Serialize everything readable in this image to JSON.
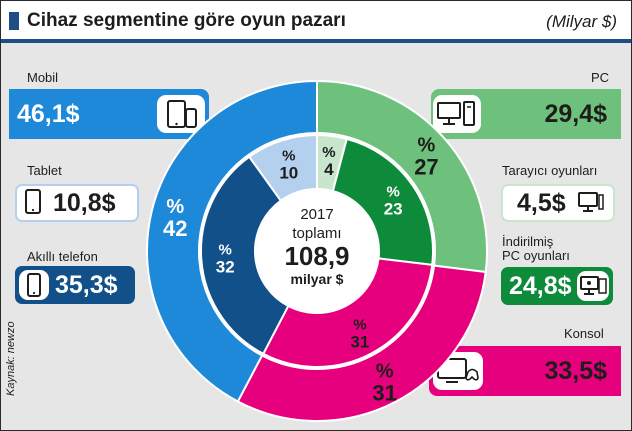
{
  "header": {
    "title": "Cihaz segmentine göre oyun pazarı",
    "unit": "(Milyar $)"
  },
  "center": {
    "line1": "2017",
    "line2": "toplamı",
    "total": "108,9",
    "line4": "milyar $"
  },
  "source": "Kaynak: newzo",
  "colors": {
    "mobile": "#1e88d9",
    "tablet": "#b3d1ee",
    "smartphone": "#12508a",
    "pc": "#6ec17c",
    "browser": "#c8e6cb",
    "pc_downloaded": "#0d8a3a",
    "console": "#e6007e",
    "header_rule": "#1d4f86"
  },
  "chart_data": [
    {
      "type": "pie",
      "ring": "outer",
      "categories": [
        "PC",
        "Konsol",
        "Mobil"
      ],
      "values": [
        29.4,
        33.5,
        46.1
      ],
      "labels": [
        {
          "percent_sign": "%",
          "value": "27"
        },
        {
          "percent_sign": "%",
          "value": "31"
        },
        {
          "percent_sign": "%",
          "value": "42"
        }
      ]
    },
    {
      "type": "pie",
      "ring": "inner",
      "categories": [
        "Tarayıcı oyunları",
        "İndirilmiş PC oyunları",
        "Konsol",
        "Akıllı telefon",
        "Tablet"
      ],
      "values": [
        4.5,
        24.8,
        33.5,
        35.3,
        10.8
      ],
      "labels": [
        {
          "percent_sign": "%",
          "value": "4"
        },
        {
          "percent_sign": "%",
          "value": "23"
        },
        {
          "percent_sign": "%",
          "value": "31"
        },
        {
          "percent_sign": "%",
          "value": "32"
        },
        {
          "percent_sign": "%",
          "value": "10"
        }
      ]
    }
  ],
  "callouts": {
    "mobil": {
      "label": "Mobil",
      "value": "46,1$",
      "icon": "tablet-phone-icon"
    },
    "tablet": {
      "label": "Tablet",
      "value": "10,8$",
      "icon": "tablet-icon"
    },
    "smartphone": {
      "label": "Akıllı telefon",
      "value": "35,3$",
      "icon": "smartphone-icon"
    },
    "pc": {
      "label": "PC",
      "value": "29,4$",
      "icon": "desktop-pc-icon"
    },
    "browser": {
      "label": "Tarayıcı oyunları",
      "value": "4,5$",
      "icon": "monitor-icon"
    },
    "downloaded": {
      "label_line1": "İndirilmiş",
      "label_line2": "PC oyunları",
      "value": "24,8$",
      "icon": "monitor-gamepad-icon"
    },
    "console": {
      "label": "Konsol",
      "value": "33,5$",
      "icon": "tv-gamepad-icon"
    }
  }
}
